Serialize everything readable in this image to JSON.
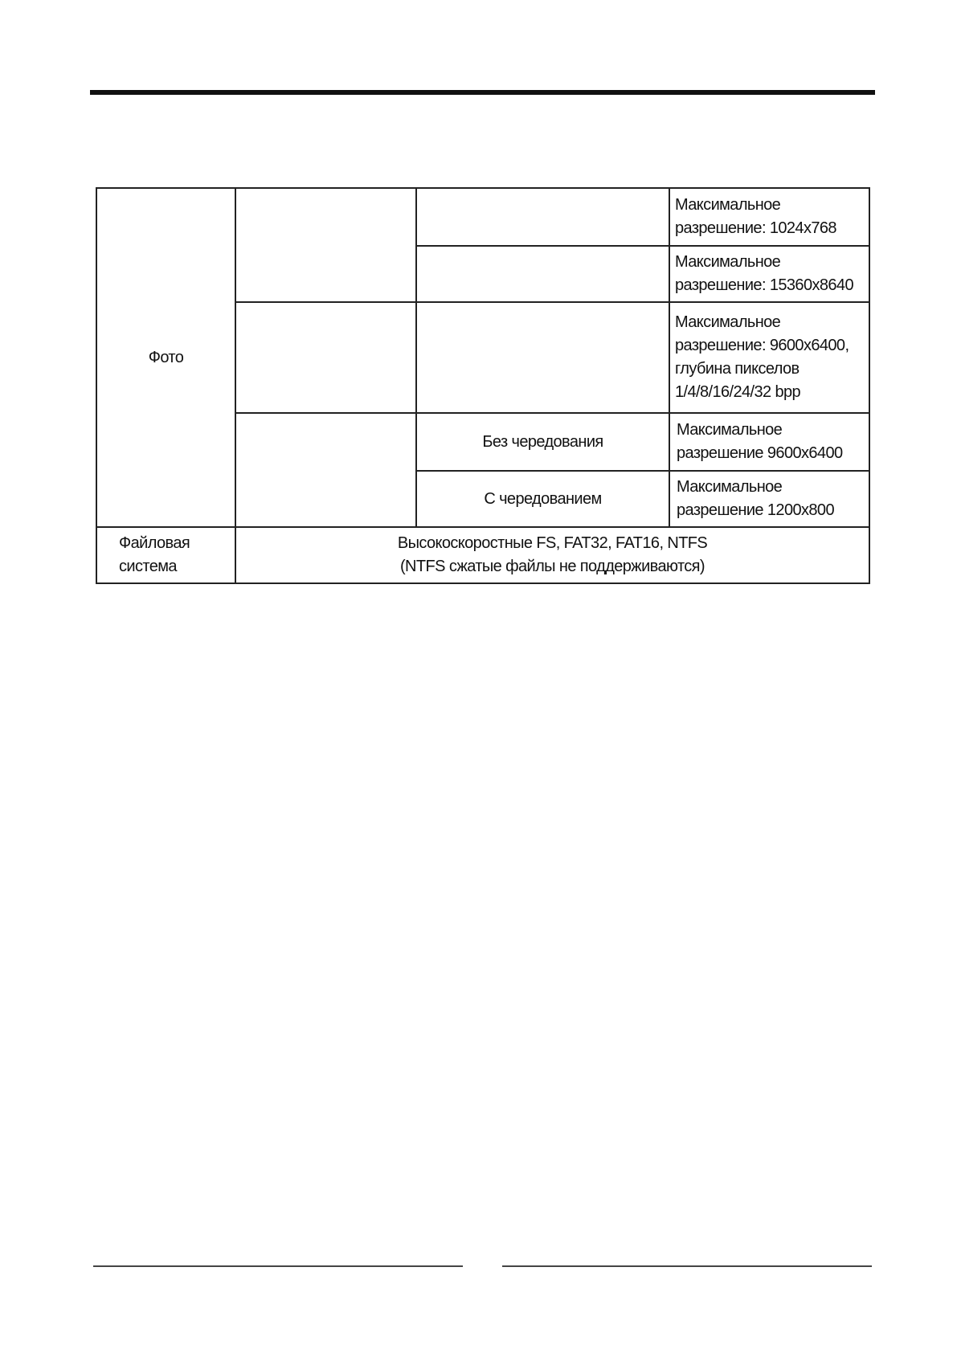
{
  "table": {
    "photo_label": "Фото",
    "rows": [
      {
        "mode": "",
        "spec": "Максимальное разрешение: 1024x768"
      },
      {
        "mode": "",
        "spec": "Максимальное разрешение: 15360x8640"
      },
      {
        "mode": "",
        "spec": "Максимальное разрешение: 9600x6400, глубина пикселов 1/4/8/16/24/32 bpp"
      },
      {
        "mode": "Без чередования",
        "spec": "Максимальное разрешение 9600x6400"
      },
      {
        "mode": "С чередованием",
        "spec": "Максимальное разрешение 1200x800"
      }
    ],
    "fs_label": "Файловая система",
    "fs_value_line1": "Высокоскоростные FS, FAT32, FAT16, NTFS",
    "fs_value_line2": "(NTFS сжатые файлы не поддерживаются)"
  }
}
